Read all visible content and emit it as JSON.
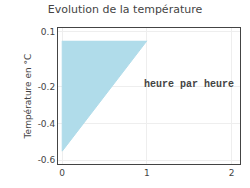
{
  "chart_data": {
    "type": "polygon",
    "title": "Evolution de la température",
    "ylabel": "Température en °C",
    "x": [
      0,
      0,
      1
    ],
    "values": [
      0.05,
      -0.55,
      0.05
    ],
    "color": "#b0dcea",
    "xlim": [
      -0.05,
      2.1
    ],
    "ylim": [
      -0.62,
      0.12
    ],
    "xticks": [
      0,
      1,
      2
    ],
    "yticks": [
      0.1,
      -0.2,
      -0.4,
      -0.6
    ],
    "grid": true,
    "annotations": [
      {
        "text": "heure par heure",
        "x": 1.5,
        "y": -0.19
      }
    ]
  }
}
